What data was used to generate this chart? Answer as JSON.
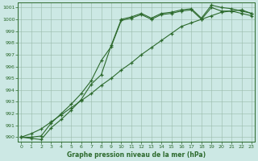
{
  "title": "Graphe pression niveau de la mer (hPa)",
  "bg_color": "#cce8e4",
  "line_color": "#2d6a2d",
  "grid_color": "#99bbaa",
  "yticks": [
    990,
    991,
    992,
    993,
    994,
    995,
    996,
    997,
    998,
    999,
    1000,
    1001
  ],
  "xticks": [
    0,
    1,
    2,
    3,
    4,
    5,
    6,
    7,
    8,
    9,
    10,
    11,
    12,
    13,
    14,
    15,
    16,
    17,
    18,
    19,
    20,
    21,
    22,
    23
  ],
  "xlim": [
    -0.3,
    23.3
  ],
  "ylim": [
    989.6,
    1001.4
  ],
  "line1_x": [
    0,
    1,
    2,
    3,
    4,
    5,
    6,
    7,
    8,
    9,
    10,
    11,
    12,
    13,
    14,
    15,
    16,
    17,
    18,
    19,
    20,
    21,
    22,
    23
  ],
  "line1_y": [
    990.0,
    989.9,
    989.8,
    990.8,
    991.5,
    992.3,
    993.2,
    994.5,
    995.3,
    997.8,
    1000.0,
    1000.2,
    1000.5,
    1000.1,
    1000.5,
    1000.6,
    1000.8,
    1000.9,
    1000.1,
    1001.2,
    1001.0,
    1000.9,
    1000.7,
    1000.5
  ],
  "line2_x": [
    0,
    1,
    2,
    3,
    4,
    5,
    6,
    7,
    8,
    9,
    10,
    11,
    12,
    13,
    14,
    15,
    16,
    17,
    18,
    19,
    20,
    21,
    22,
    23
  ],
  "line2_y": [
    990.0,
    990.0,
    990.1,
    991.2,
    992.0,
    992.8,
    993.7,
    994.8,
    996.5,
    997.7,
    999.9,
    1000.1,
    1000.4,
    1000.0,
    1000.4,
    1000.5,
    1000.7,
    1000.8,
    1000.0,
    1001.0,
    1000.7,
    1000.7,
    1000.5,
    1000.3
  ],
  "line3_x": [
    0,
    1,
    2,
    3,
    4,
    5,
    6,
    7,
    8,
    9,
    10,
    11,
    12,
    13,
    14,
    15,
    16,
    17,
    18,
    19,
    20,
    21,
    22,
    23
  ],
  "line3_y": [
    990.0,
    990.3,
    990.7,
    991.3,
    991.9,
    992.5,
    993.1,
    993.7,
    994.4,
    995.0,
    995.7,
    996.3,
    997.0,
    997.6,
    998.2,
    998.8,
    999.4,
    999.7,
    1000.0,
    1000.3,
    1000.6,
    1000.7,
    1000.8,
    1000.5
  ]
}
